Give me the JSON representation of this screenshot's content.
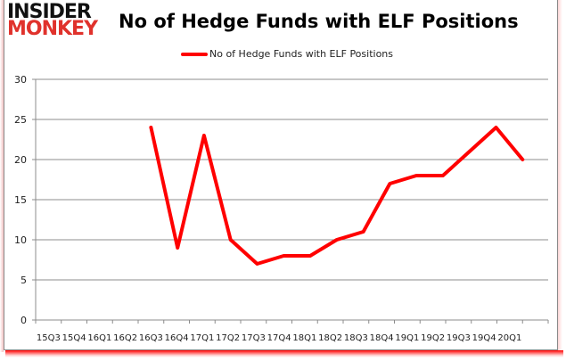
{
  "brand": {
    "line1": "INSIDER",
    "line2": "MONKEY"
  },
  "chart_data": {
    "type": "line",
    "title": "No of Hedge Funds with ELF Positions",
    "xlabel": "",
    "ylabel": "",
    "ylim": [
      0,
      30
    ],
    "yticks": [
      0,
      5,
      10,
      15,
      20,
      25,
      30
    ],
    "grid": true,
    "legend_position": "top",
    "categories": [
      "15Q3",
      "15Q4",
      "16Q1",
      "16Q2",
      "16Q3",
      "16Q4",
      "17Q1",
      "17Q2",
      "17Q3",
      "17Q4",
      "18Q1",
      "18Q2",
      "18Q3",
      "18Q4",
      "19Q1",
      "19Q2",
      "19Q3",
      "19Q4",
      "20Q1"
    ],
    "series": [
      {
        "name": "No of Hedge Funds with ELF Positions",
        "color": "#ff0000",
        "values": [
          null,
          null,
          null,
          null,
          24,
          9,
          23,
          10,
          7,
          8,
          8,
          10,
          11,
          17,
          18,
          18,
          21,
          24,
          20
        ]
      }
    ]
  }
}
